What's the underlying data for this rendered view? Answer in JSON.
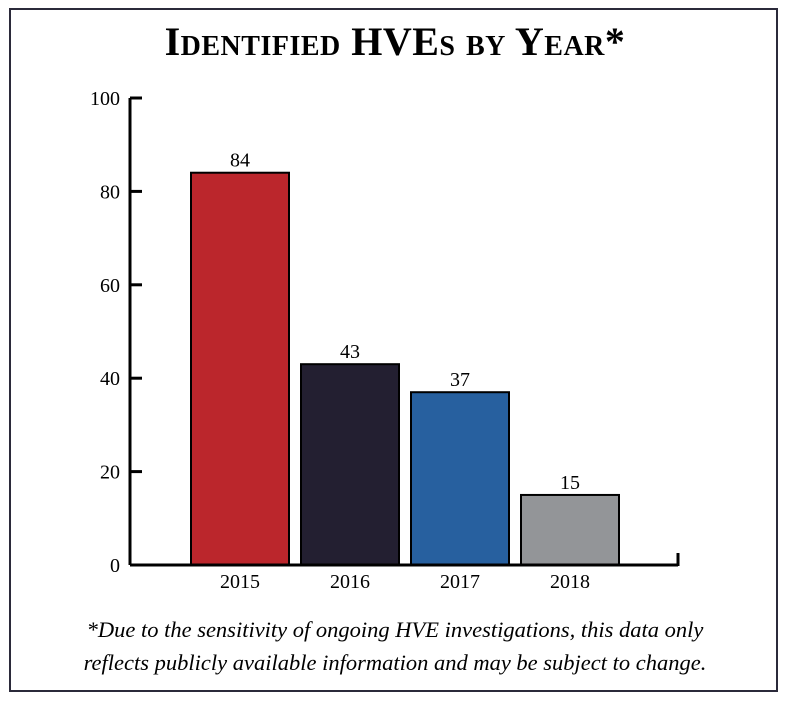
{
  "chart_data": {
    "type": "bar",
    "title": "Identified HVEs by Year*",
    "categories": [
      "2015",
      "2016",
      "2017",
      "2018"
    ],
    "values": [
      84,
      43,
      37,
      15
    ],
    "ylim": [
      0,
      100
    ],
    "yticks": [
      0,
      20,
      40,
      60,
      80,
      100
    ],
    "grid": false,
    "xlabel": "",
    "ylabel": "",
    "colors": [
      "#bb262c",
      "#231f31",
      "#27609f",
      "#939598"
    ]
  },
  "footnote": {
    "line1": "*Due to the sensitivity of ongoing HVE investigations, this data only",
    "line2": "reflects publicly available information and may be subject to change."
  }
}
